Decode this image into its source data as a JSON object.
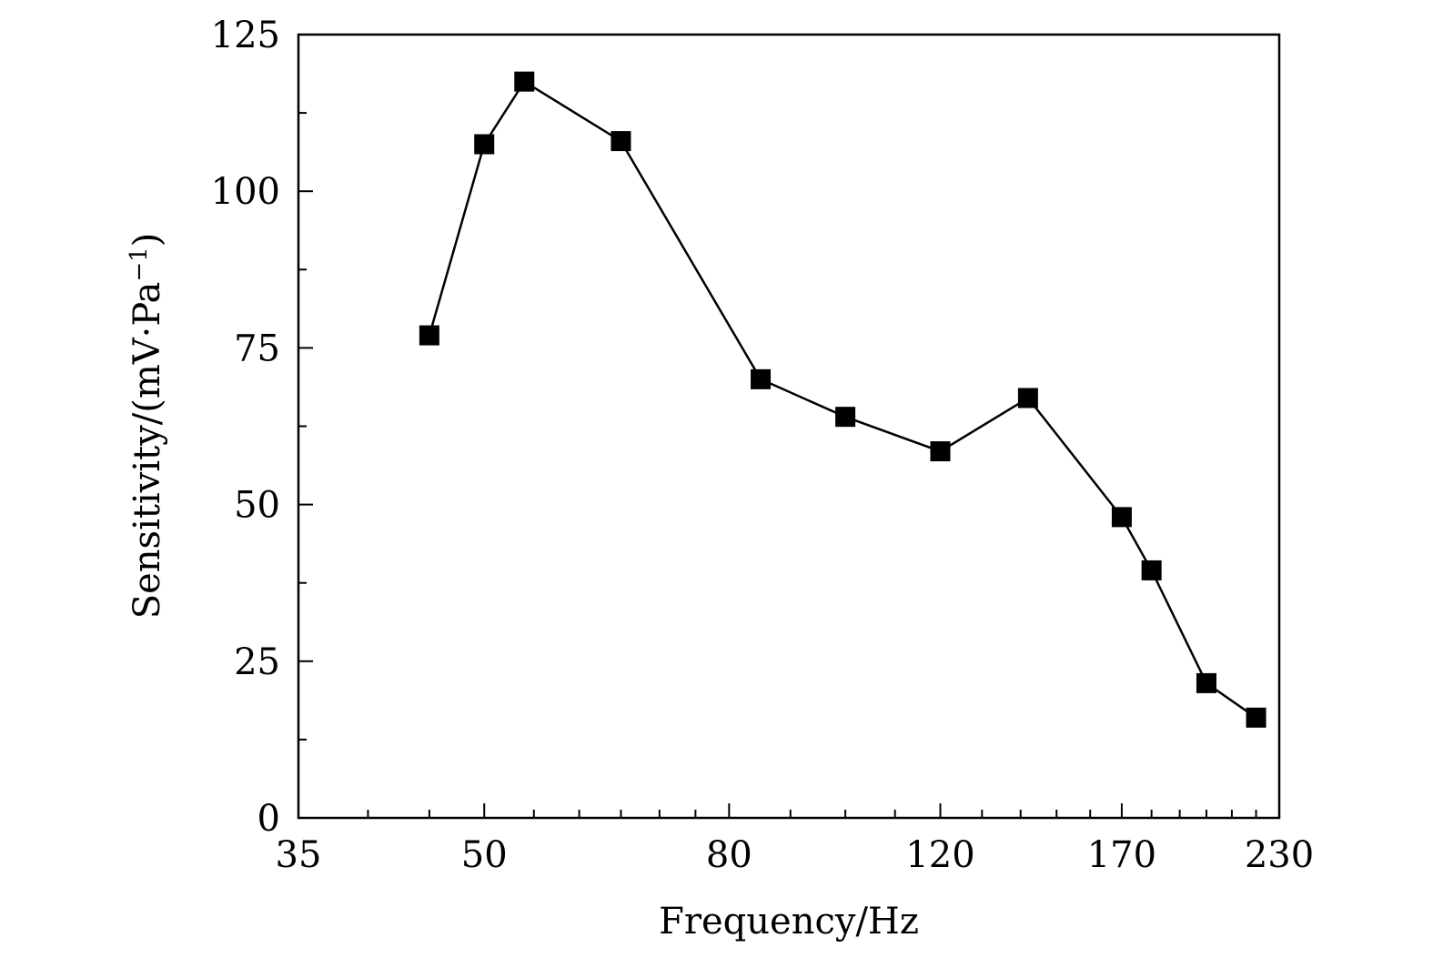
{
  "chart_data": {
    "type": "line",
    "title": "",
    "xlabel": "Frequency/Hz",
    "ylabel": {
      "main": "Sensitivity/(mV·Pa",
      "superscript": "−1",
      "close": ")"
    },
    "x_scale": "log",
    "xlim": [
      35,
      230
    ],
    "ylim": [
      0,
      125
    ],
    "x_ticks": [
      35,
      50,
      80,
      120,
      170,
      230
    ],
    "x_tick_labels": [
      "35",
      "50",
      "80",
      "120",
      "170",
      "230"
    ],
    "x_minor_ticks": [
      40,
      45,
      55,
      60,
      65,
      70,
      75,
      90,
      100,
      110,
      130,
      140,
      150,
      160,
      180,
      190,
      200,
      210,
      220
    ],
    "y_ticks": [
      0,
      25,
      50,
      75,
      100,
      125
    ],
    "y_tick_labels": [
      "0",
      "25",
      "50",
      "75",
      "100",
      "125"
    ],
    "y_minor_ticks": [
      12.5,
      37.5,
      62.5,
      87.5,
      112.5
    ],
    "grid": false,
    "legend": "none",
    "marker": "square",
    "color": "#000000",
    "series": [
      {
        "x": [
          45,
          50,
          54,
          65,
          85,
          100,
          120,
          142,
          170,
          180,
          200,
          220
        ],
        "y": [
          77,
          107.5,
          117.5,
          108,
          70,
          64,
          58.5,
          67,
          48,
          39.5,
          21.5,
          16
        ]
      }
    ]
  }
}
